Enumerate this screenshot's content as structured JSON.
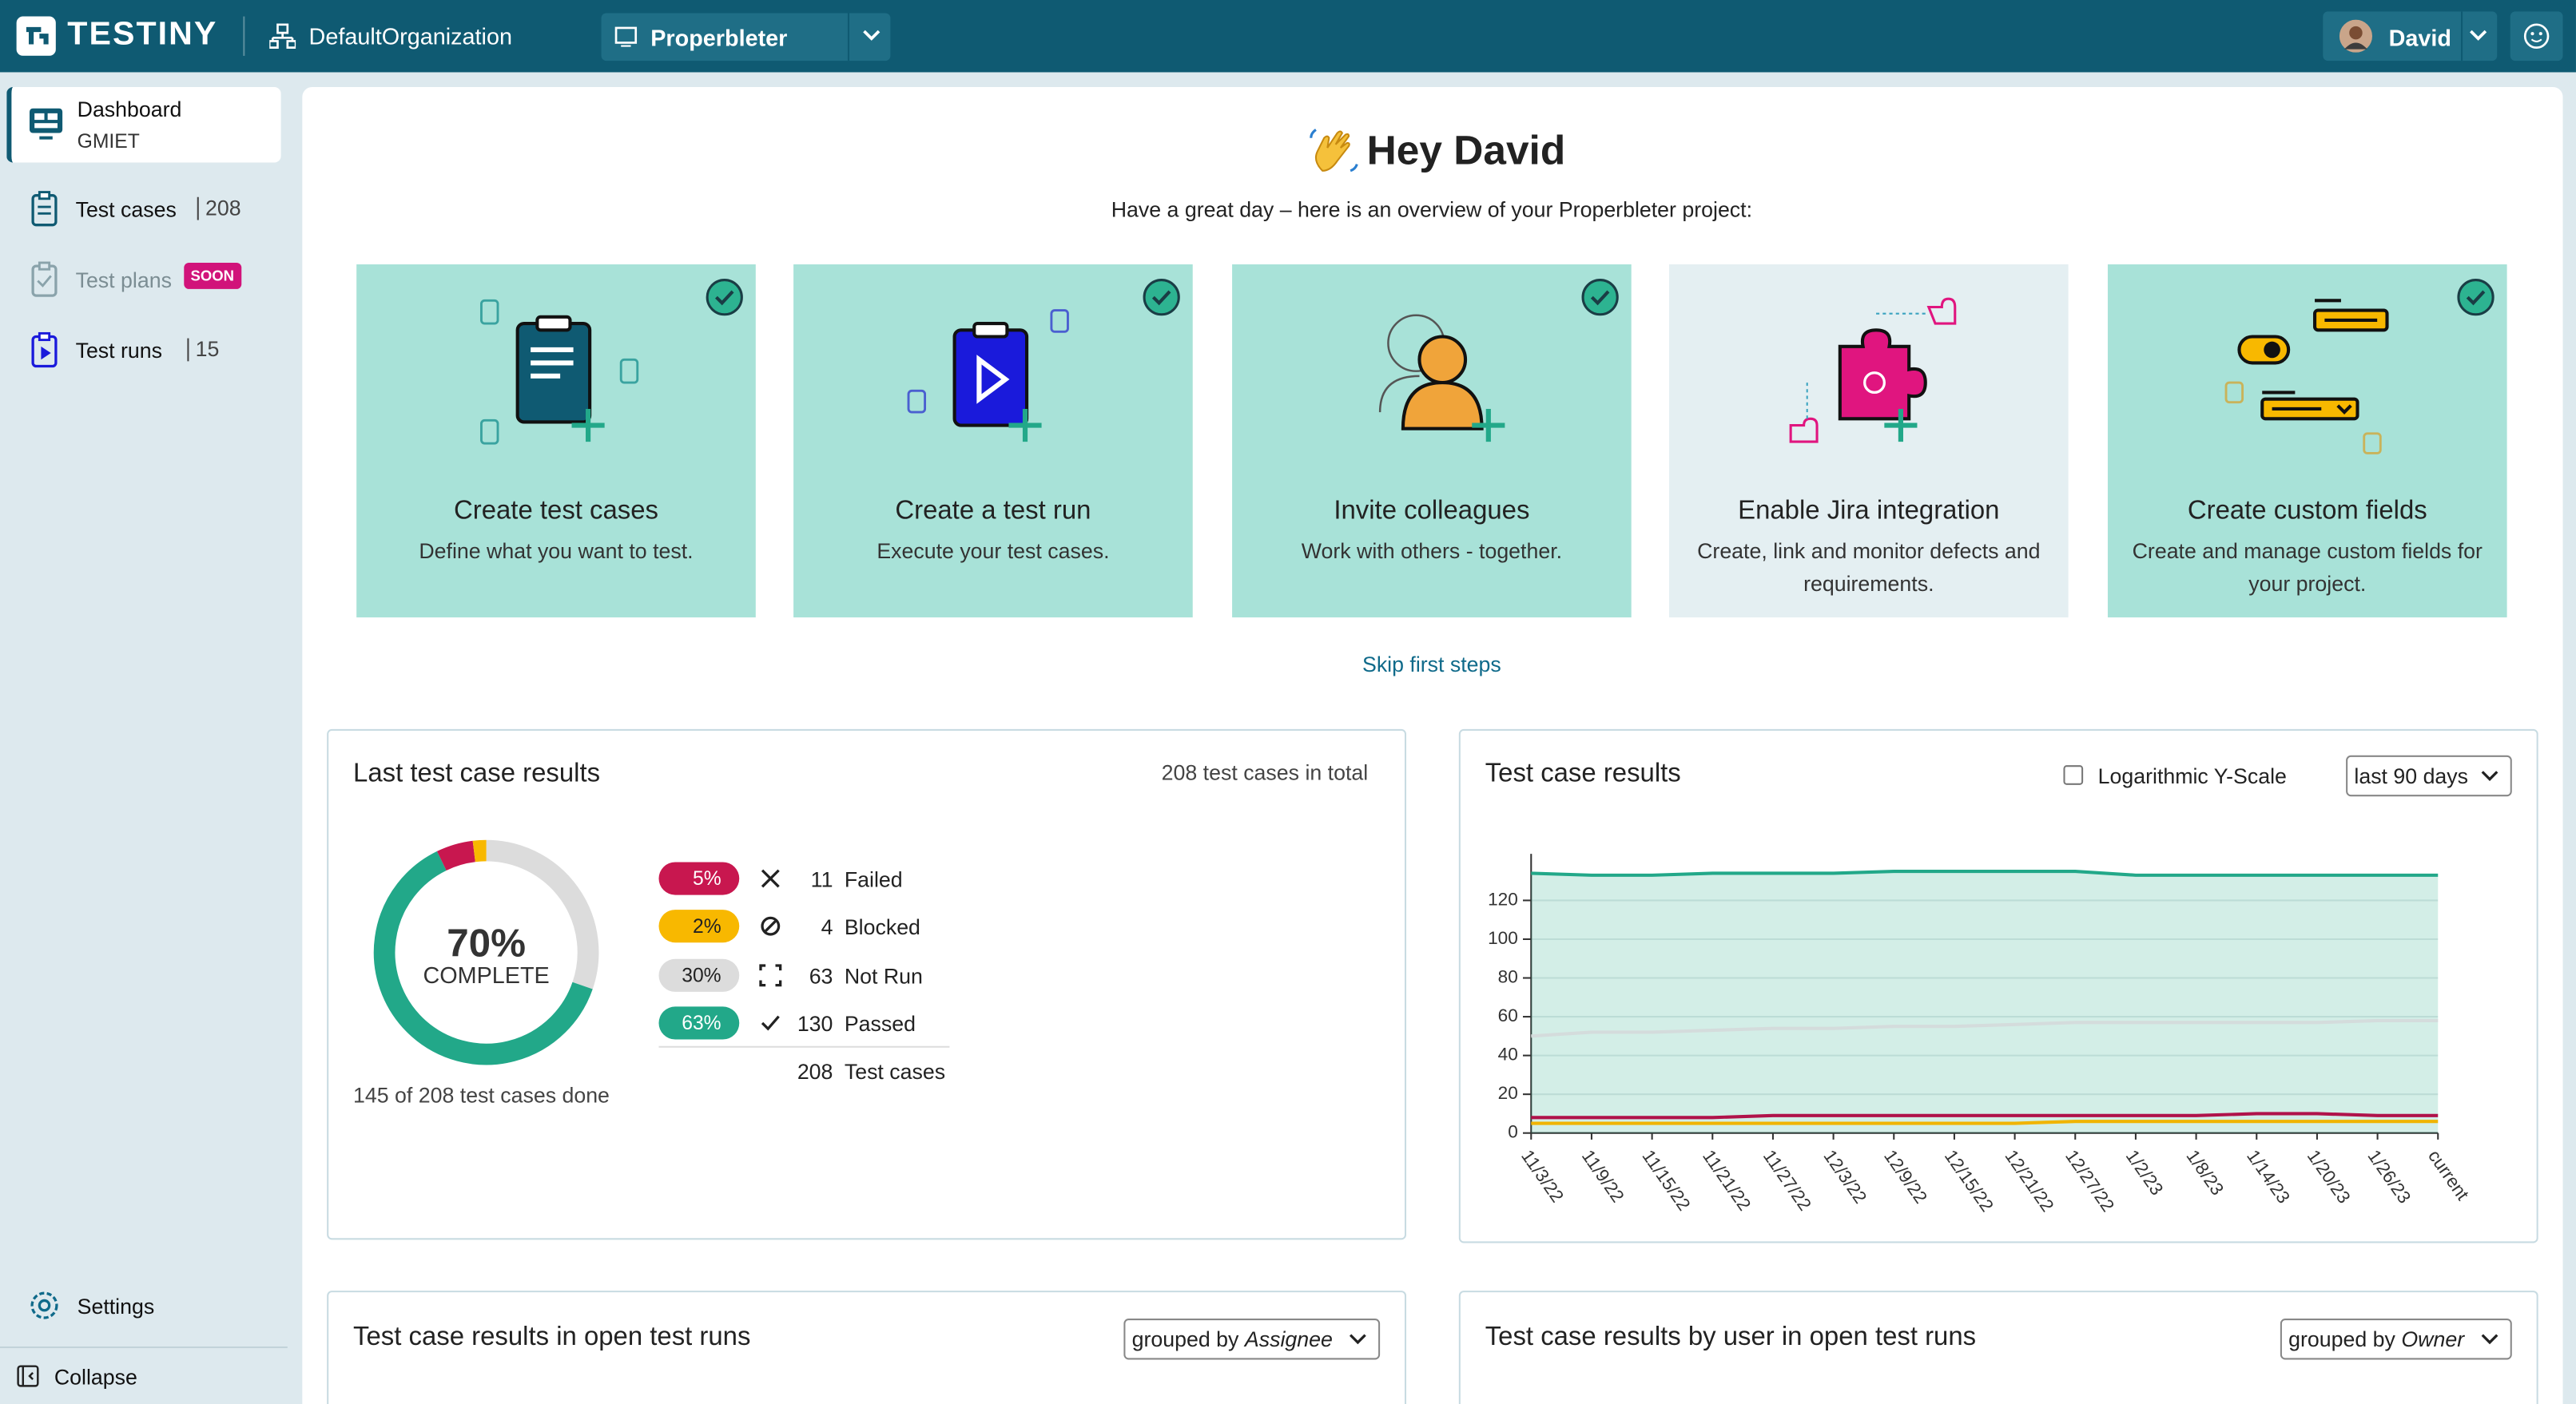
{
  "header": {
    "logo": "TESTINY",
    "organization": "DefaultOrganization",
    "project": "Properbleter",
    "user": "David"
  },
  "sidebar": {
    "items": [
      {
        "label": "Dashboard",
        "subtitle": "GMIET"
      },
      {
        "label": "Test cases",
        "count": 208
      },
      {
        "label": "Test plans",
        "badge": "SOON"
      },
      {
        "label": "Test runs",
        "count": 15
      }
    ],
    "settings": "Settings",
    "collapse": "Collapse"
  },
  "greeting": {
    "title": "Hey David",
    "subtitle": "Have a great day – here is an overview of your Properbleter project:"
  },
  "cards": [
    {
      "title": "Create test cases",
      "description": "Define what you want to test.",
      "done": true
    },
    {
      "title": "Create a test run",
      "description": "Execute your test cases.",
      "done": true
    },
    {
      "title": "Invite colleagues",
      "description": "Work with others - together.",
      "done": true
    },
    {
      "title": "Enable Jira integration",
      "description": "Create, link and monitor defects and requirements.",
      "done": false
    },
    {
      "title": "Create custom fields",
      "description": "Create and manage custom fields for your project.",
      "done": true
    }
  ],
  "skip_link": "Skip first steps",
  "last_results": {
    "title": "Last test case results",
    "total_note": "208 test cases in total",
    "chart": {
      "type": "donut",
      "center": {
        "value": 70,
        "label": "70%"
      },
      "center_caption": "COMPLETE",
      "caption": "145 of 208 test cases done",
      "categories": [
        "Failed",
        "Blocked",
        "Not Run",
        "Passed"
      ],
      "values": [
        11,
        4,
        63,
        130
      ],
      "percents": [
        5,
        2,
        30,
        63
      ],
      "percent_labels": [
        "5%",
        "2%",
        "30%",
        "63%"
      ],
      "colors": [
        "#c8174f",
        "#f8b800",
        "#dcdcdc",
        "#22a889"
      ],
      "total": 208,
      "total_label": "Test cases"
    }
  },
  "results_over_time": {
    "title": "Test case results",
    "log_scale_label": "Logarithmic Y-Scale",
    "log_scale": false,
    "range": "last 90 days",
    "chart": {
      "type": "line",
      "x": [
        "11/3/22",
        "11/9/22",
        "11/15/22",
        "11/21/22",
        "11/27/22",
        "12/3/22",
        "12/9/22",
        "12/15/22",
        "12/21/22",
        "12/27/22",
        "1/2/23",
        "1/8/23",
        "1/14/23",
        "1/20/23",
        "1/26/23",
        "current"
      ],
      "series": [
        {
          "color": "#22a889",
          "area": true,
          "values": [
            134,
            133,
            133,
            134,
            134,
            134,
            135,
            135,
            135,
            135,
            133,
            133,
            133,
            133,
            133,
            133
          ]
        },
        {
          "color": "#d4dcdc",
          "values": [
            50,
            52,
            52,
            53,
            54,
            54,
            55,
            55,
            56,
            57,
            57,
            57,
            57,
            57,
            58,
            58
          ]
        },
        {
          "color": "#b0124a",
          "values": [
            8,
            8,
            8,
            8,
            9,
            9,
            9,
            9,
            9,
            9,
            9,
            9,
            10,
            10,
            9,
            9
          ]
        },
        {
          "color": "#f0b400",
          "values": [
            5,
            5,
            5,
            5,
            5,
            5,
            5,
            5,
            5,
            6,
            6,
            6,
            6,
            6,
            6,
            6
          ]
        }
      ],
      "ylim": [
        0,
        144
      ],
      "yticks": [
        0,
        20,
        40,
        60,
        80,
        100,
        120
      ],
      "grid": true
    }
  },
  "open_runs": {
    "title": "Test case results in open test runs",
    "group_prefix": "grouped by",
    "group": "Assignee"
  },
  "by_user": {
    "title": "Test case results by user in open test runs",
    "group_prefix": "grouped by",
    "group": "Owner"
  }
}
